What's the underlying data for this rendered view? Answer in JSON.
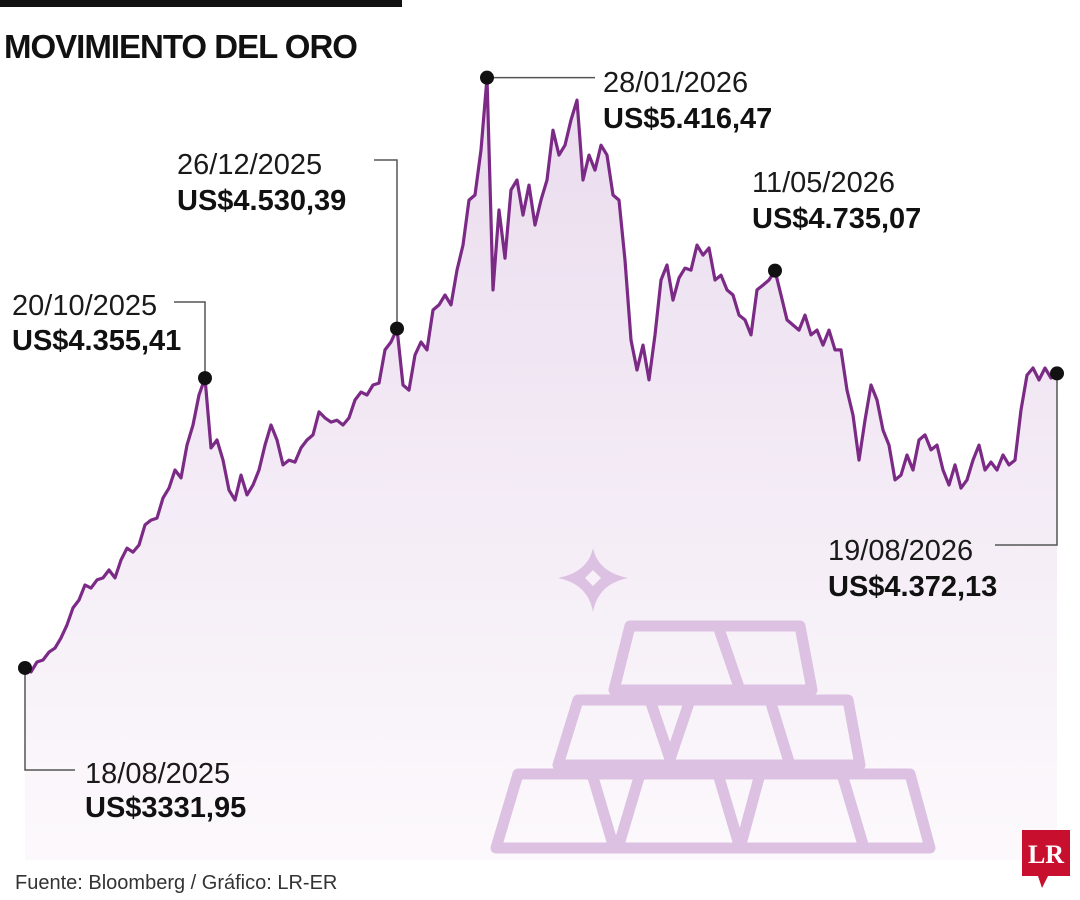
{
  "chart_data": {
    "type": "line",
    "title": "MOVIMIENTO DEL ORO",
    "source": "Fuente: Bloomberg / Gráfico: LR-ER",
    "logo": "LR",
    "color": "#7b2a86",
    "ylim": [
      3300,
      5500
    ],
    "categories": [
      "18/08/2025",
      null,
      null,
      null,
      null,
      null,
      null,
      null,
      null,
      null,
      null,
      null,
      null,
      null,
      null,
      null,
      null,
      null,
      null,
      null,
      null,
      null,
      null,
      null,
      null,
      null,
      null,
      null,
      null,
      null,
      "20/10/2025",
      null,
      null,
      null,
      null,
      null,
      null,
      null,
      null,
      null,
      null,
      null,
      null,
      null,
      null,
      null,
      null,
      null,
      null,
      null,
      null,
      null,
      null,
      null,
      null,
      null,
      null,
      null,
      null,
      null,
      null,
      null,
      "26/12/2025",
      null,
      null,
      null,
      null,
      null,
      null,
      null,
      null,
      null,
      null,
      null,
      null,
      null,
      null,
      "28/01/2026",
      null,
      null,
      null,
      null,
      null,
      null,
      null,
      null,
      null,
      null,
      null,
      null,
      null,
      null,
      null,
      null,
      null,
      null,
      null,
      null,
      null,
      null,
      null,
      null,
      null,
      null,
      null,
      null,
      null,
      null,
      null,
      null,
      null,
      null,
      null,
      null,
      null,
      null,
      null,
      null,
      null,
      null,
      null,
      null,
      null,
      null,
      null,
      "11/05/2026",
      null,
      null,
      null,
      null,
      null,
      null,
      null,
      null,
      null,
      null,
      null,
      null,
      null,
      null,
      null,
      null,
      null,
      null,
      null,
      null,
      null,
      null,
      null,
      null,
      null,
      null,
      null,
      null,
      null,
      null,
      null,
      null,
      null,
      null,
      null,
      null,
      null,
      null,
      null,
      null,
      null,
      null,
      null,
      null,
      null,
      null,
      "19/08/2026"
    ],
    "values": [
      3331.95,
      3318,
      3353,
      3360,
      3388,
      3402,
      3438,
      3484,
      3544,
      3572,
      3625,
      3614,
      3643,
      3650,
      3678,
      3650,
      3713,
      3755,
      3741,
      3766,
      3837,
      3854,
      3861,
      3932,
      3967,
      4031,
      4003,
      4119,
      4190,
      4296,
      4355.41,
      4109,
      4137,
      4066,
      3960,
      3925,
      4013,
      3943,
      3978,
      4031,
      4119,
      4190,
      4137,
      4049,
      4066,
      4059,
      4109,
      4137,
      4155,
      4236,
      4215,
      4200,
      4207,
      4190,
      4215,
      4278,
      4306,
      4296,
      4331,
      4338,
      4455,
      4483,
      4530.39,
      4331,
      4313,
      4437,
      4483,
      4455,
      4596,
      4614,
      4649,
      4614,
      4737,
      4825,
      4984,
      5002,
      5161,
      5416.47,
      4667,
      4949,
      4779,
      5020,
      5055,
      4931,
      5037,
      4896,
      4984,
      5055,
      5231,
      5143,
      5178,
      5267,
      5337,
      5055,
      5143,
      5090,
      5178,
      5143,
      5002,
      4984,
      4772,
      4490,
      4384,
      4472,
      4349,
      4508,
      4702,
      4755,
      4631,
      4709,
      4744,
      4737,
      4825,
      4790,
      4815,
      4702,
      4719,
      4667,
      4649,
      4578,
      4561,
      4508,
      4667,
      4684,
      4702,
      4735.07,
      4649,
      4561,
      4543,
      4525,
      4578,
      4508,
      4525,
      4472,
      4525,
      4455,
      4455,
      4313,
      4225,
      4066,
      4207,
      4331,
      4278,
      4172,
      4119,
      3996,
      4013,
      4084,
      4031,
      4137,
      4155,
      4102,
      4119,
      4031,
      3978,
      4049,
      3967,
      3996,
      4066,
      4119,
      4031,
      4059,
      4031,
      4084,
      4049,
      4066,
      4243,
      4366,
      4391,
      4349,
      4391,
      4356,
      4372.13
    ],
    "value_labels": [
      "US$3331,95",
      null,
      null,
      null,
      null,
      null,
      null,
      null,
      null,
      null,
      null,
      null,
      null,
      null,
      null,
      null,
      null,
      null,
      null,
      null,
      null,
      null,
      null,
      null,
      null,
      null,
      null,
      null,
      null,
      null,
      "US$4.355,41",
      null,
      null,
      null,
      null,
      null,
      null,
      null,
      null,
      null,
      null,
      null,
      null,
      null,
      null,
      null,
      null,
      null,
      null,
      null,
      null,
      null,
      null,
      null,
      null,
      null,
      null,
      null,
      null,
      null,
      null,
      null,
      "US$4.530,39",
      null,
      null,
      null,
      null,
      null,
      null,
      null,
      null,
      null,
      null,
      null,
      null,
      null,
      null,
      "US$5.416,47",
      null,
      null,
      null,
      null,
      null,
      null,
      null,
      null,
      null,
      null,
      null,
      null,
      null,
      null,
      null,
      null,
      null,
      null,
      null,
      null,
      null,
      null,
      null,
      null,
      null,
      null,
      null,
      null,
      null,
      null,
      null,
      null,
      null,
      null,
      null,
      null,
      null,
      null,
      null,
      null,
      null,
      null,
      null,
      null,
      null,
      null,
      null,
      "US$4.735,07",
      null,
      null,
      null,
      null,
      null,
      null,
      null,
      null,
      null,
      null,
      null,
      null,
      null,
      null,
      null,
      null,
      null,
      null,
      null,
      null,
      null,
      null,
      null,
      null,
      null,
      null,
      null,
      null,
      null,
      null,
      null,
      null,
      null,
      null,
      null,
      null,
      null,
      null,
      null,
      null,
      null,
      null,
      null,
      null,
      null,
      null,
      "US$4.372,13"
    ]
  }
}
